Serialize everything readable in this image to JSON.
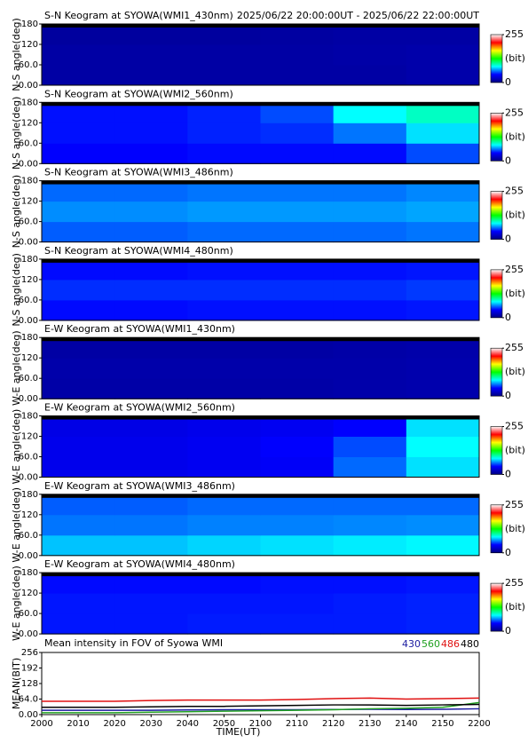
{
  "chart_data": [
    {
      "type": "heatmap",
      "title": "S-N Keogram at SYOWA(WMI1_430nm)",
      "subtitle": "2025/06/22 20:00:00UT - 2025/06/22 22:00:00UT",
      "ylabel": "N-S angle(deg)",
      "ylim": [
        0,
        180
      ],
      "yticks": [
        {
          "value": 0,
          "label": "0.00"
        },
        {
          "value": 60,
          "label": "60.0"
        },
        120,
        180
      ],
      "values": [
        [
          12,
          12,
          12,
          12,
          12,
          14
        ],
        [
          12,
          12,
          12,
          12,
          13,
          14
        ],
        [
          10,
          10,
          10,
          11,
          12,
          12
        ]
      ],
      "clim": [
        0,
        255
      ],
      "cticks": [
        0,
        255
      ],
      "clabel": "(bit)",
      "colormap": [
        "#000080",
        "#0000ff",
        "#00ffff",
        "#00ff00",
        "#ffff00",
        "#ff0000",
        "#ffffff"
      ]
    },
    {
      "type": "heatmap",
      "title": "S-N Keogram at SYOWA(WMI2_560nm)",
      "ylabel": "N-S angle(deg)",
      "ylim": [
        0,
        180
      ],
      "yticks": [
        {
          "value": 0,
          "label": "0.00"
        },
        {
          "value": 60,
          "label": "60.0"
        },
        120,
        180
      ],
      "values": [
        [
          42,
          42,
          44,
          44,
          44,
          55
        ],
        [
          45,
          45,
          48,
          50,
          62,
          80
        ],
        [
          45,
          45,
          48,
          55,
          85,
          95
        ]
      ],
      "clim": [
        0,
        255
      ],
      "cticks": [
        0,
        255
      ],
      "clabel": "(bit)",
      "colormap": [
        "#000080",
        "#0000ff",
        "#00ffff",
        "#00ff00",
        "#ffff00",
        "#ff0000",
        "#ffffff"
      ]
    },
    {
      "type": "heatmap",
      "title": "S-N Keogram at SYOWA(WMI3_486nm)",
      "ylabel": "N-S angle(deg)",
      "ylim": [
        0,
        180
      ],
      "yticks": [
        {
          "value": 0,
          "label": "0.00"
        },
        {
          "value": 60,
          "label": "60.0"
        },
        120,
        180
      ],
      "values": [
        [
          58,
          58,
          60,
          60,
          60,
          62
        ],
        [
          66,
          66,
          68,
          68,
          68,
          70
        ],
        [
          60,
          60,
          62,
          62,
          62,
          65
        ]
      ],
      "clim": [
        0,
        255
      ],
      "cticks": [
        0,
        255
      ],
      "clabel": "(bit)",
      "colormap": [
        "#000080",
        "#0000ff",
        "#00ffff",
        "#00ff00",
        "#ffff00",
        "#ff0000",
        "#ffffff"
      ]
    },
    {
      "type": "heatmap",
      "title": "S-N Keogram at SYOWA(WMI4_480nm)",
      "ylabel": "N-S angle(deg)",
      "ylim": [
        0,
        180
      ],
      "yticks": [
        {
          "value": 0,
          "label": "0.00"
        },
        {
          "value": 60,
          "label": "60.0"
        },
        120,
        180
      ],
      "values": [
        [
          44,
          44,
          45,
          45,
          45,
          46
        ],
        [
          50,
          50,
          50,
          50,
          50,
          52
        ],
        [
          44,
          44,
          45,
          45,
          45,
          46
        ]
      ],
      "clim": [
        0,
        255
      ],
      "cticks": [
        0,
        255
      ],
      "clabel": "(bit)",
      "colormap": [
        "#000080",
        "#0000ff",
        "#00ffff",
        "#00ff00",
        "#ffff00",
        "#ff0000",
        "#ffffff"
      ]
    },
    {
      "type": "heatmap",
      "title": "E-W Keogram at SYOWA(WMI1_430nm)",
      "ylabel": "W-E angle(deg)",
      "ylim": [
        0,
        180
      ],
      "yticks": [
        {
          "value": 0,
          "label": "0.00"
        },
        {
          "value": 60,
          "label": "60.0"
        },
        120,
        180
      ],
      "values": [
        [
          13,
          13,
          13,
          13,
          14,
          15
        ],
        [
          14,
          14,
          14,
          14,
          14,
          15
        ],
        [
          12,
          12,
          12,
          12,
          13,
          14
        ]
      ],
      "clim": [
        0,
        255
      ],
      "cticks": [
        0,
        255
      ],
      "clabel": "(bit)",
      "colormap": [
        "#000080",
        "#0000ff",
        "#00ffff",
        "#00ff00",
        "#ffff00",
        "#ff0000",
        "#ffffff"
      ]
    },
    {
      "type": "heatmap",
      "title": "E-W Keogram at SYOWA(WMI2_560nm)",
      "ylabel": "W-E angle(deg)",
      "ylim": [
        0,
        180
      ],
      "yticks": [
        {
          "value": 0,
          "label": "0.00"
        },
        {
          "value": 60,
          "label": "60.0"
        },
        120,
        180
      ],
      "values": [
        [
          36,
          36,
          38,
          40,
          60,
          80
        ],
        [
          36,
          36,
          38,
          42,
          55,
          85
        ],
        [
          34,
          34,
          36,
          38,
          42,
          80
        ]
      ],
      "clim": [
        0,
        255
      ],
      "cticks": [
        0,
        255
      ],
      "clabel": "(bit)",
      "colormap": [
        "#000080",
        "#0000ff",
        "#00ffff",
        "#00ff00",
        "#ffff00",
        "#ff0000",
        "#ffffff"
      ]
    },
    {
      "type": "heatmap",
      "title": "E-W Keogram at SYOWA(WMI3_486nm)",
      "ylabel": "W-E angle(deg)",
      "ylim": [
        0,
        180
      ],
      "yticks": [
        {
          "value": 0,
          "label": "0.00"
        },
        {
          "value": 60,
          "label": "60.0"
        },
        120,
        180
      ],
      "values": [
        [
          75,
          75,
          78,
          80,
          82,
          84
        ],
        [
          62,
          62,
          64,
          64,
          65,
          66
        ],
        [
          58,
          58,
          60,
          60,
          60,
          60
        ]
      ],
      "clim": [
        0,
        255
      ],
      "cticks": [
        0,
        255
      ],
      "clabel": "(bit)",
      "colormap": [
        "#000080",
        "#0000ff",
        "#00ffff",
        "#00ff00",
        "#ffff00",
        "#ff0000",
        "#ffffff"
      ]
    },
    {
      "type": "heatmap",
      "title": "E-W Keogram at SYOWA(WMI4_480nm)",
      "ylabel": "W-E angle(deg)",
      "ylim": [
        0,
        180
      ],
      "yticks": [
        {
          "value": 0,
          "label": "0.00"
        },
        {
          "value": 60,
          "label": "60.0"
        },
        120,
        180
      ],
      "values": [
        [
          46,
          46,
          47,
          47,
          47,
          48
        ],
        [
          46,
          46,
          46,
          46,
          47,
          48
        ],
        [
          44,
          44,
          44,
          45,
          45,
          46
        ]
      ],
      "clim": [
        0,
        255
      ],
      "cticks": [
        0,
        255
      ],
      "clabel": "(bit)",
      "colormap": [
        "#000080",
        "#0000ff",
        "#00ffff",
        "#00ff00",
        "#ffff00",
        "#ff0000",
        "#ffffff"
      ]
    },
    {
      "type": "line",
      "title": "Mean intensity in FOV of Syowa WMI",
      "xlabel": "TIME(UT)",
      "ylabel": "MEAN(BIT)",
      "categories": [
        "2000",
        "2010",
        "2020",
        "2030",
        "2040",
        "2050",
        "2100",
        "2110",
        "2120",
        "2130",
        "2140",
        "2150",
        "2200"
      ],
      "ylim": [
        0,
        256
      ],
      "yticks": [
        {
          "value": 0,
          "label": "0.00"
        },
        {
          "value": 64,
          "label": "64.0"
        },
        128,
        192,
        256
      ],
      "series": [
        {
          "name": "430",
          "color": "#1a1aa0",
          "values": [
            18,
            18,
            18,
            18,
            19,
            20,
            20,
            20,
            21,
            22,
            21,
            22,
            24
          ]
        },
        {
          "name": "560",
          "color": "#20a020",
          "values": [
            8,
            8,
            8,
            10,
            12,
            14,
            16,
            18,
            20,
            24,
            26,
            30,
            50
          ]
        },
        {
          "name": "486",
          "color": "#e01010",
          "values": [
            55,
            55,
            55,
            58,
            60,
            60,
            60,
            62,
            66,
            68,
            64,
            66,
            68
          ]
        },
        {
          "name": "480",
          "color": "#000000",
          "values": [
            30,
            30,
            30,
            32,
            34,
            34,
            36,
            38,
            40,
            40,
            38,
            40,
            42
          ]
        }
      ]
    }
  ]
}
